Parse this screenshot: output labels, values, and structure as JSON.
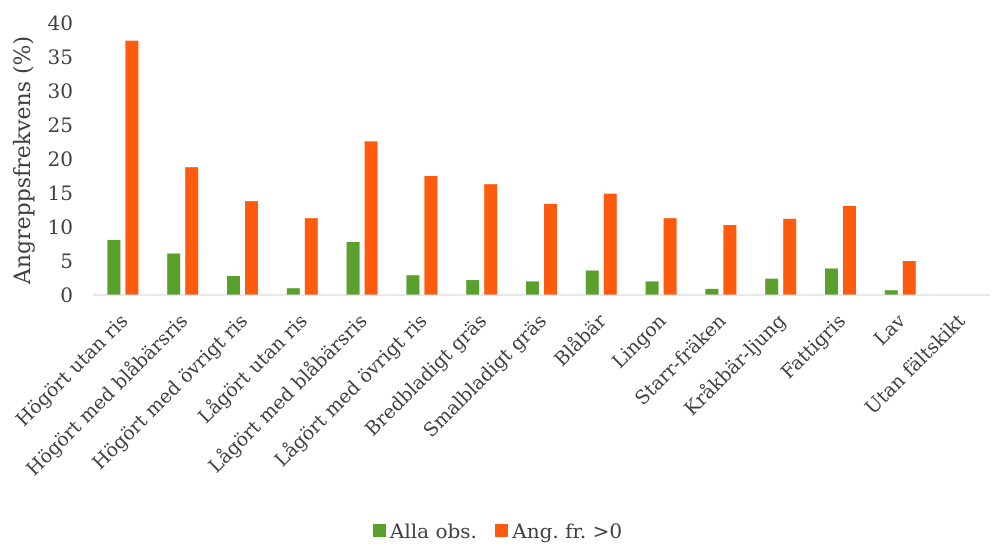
{
  "chart_data": {
    "type": "bar",
    "ylabel": "Angreppsfrekvens (%)",
    "ylim": [
      0,
      40
    ],
    "yticks": [
      0,
      5,
      10,
      15,
      20,
      25,
      30,
      35,
      40
    ],
    "grid": false,
    "legend_position": "bottom",
    "categories": [
      "Högört utan ris",
      "Högört med blåbärsris",
      "Högört med övrigt ris",
      "Lågört utan ris",
      "Lågört med blåbärsris",
      "Lågört med övrigt ris",
      "Bredbladigt gräs",
      "Smalbladigt gräs",
      "Blåbär",
      "Lingon",
      "Starr-fräken",
      "Kråkbär-ljung",
      "Fattigris",
      "Lav",
      "Utan fältskikt"
    ],
    "series": [
      {
        "name": "Alla obs.",
        "color": "#5aa02c",
        "values": [
          8.1,
          6.1,
          2.8,
          1.0,
          7.8,
          2.9,
          2.2,
          2.0,
          3.6,
          2.0,
          0.9,
          2.4,
          3.9,
          0.7,
          0
        ]
      },
      {
        "name": "Ang. fr. >0",
        "color": "#ff5b0f",
        "values": [
          37.4,
          18.8,
          13.8,
          11.3,
          22.6,
          17.5,
          16.3,
          13.4,
          14.9,
          11.3,
          10.3,
          11.2,
          13.1,
          5.0,
          0
        ]
      }
    ]
  }
}
